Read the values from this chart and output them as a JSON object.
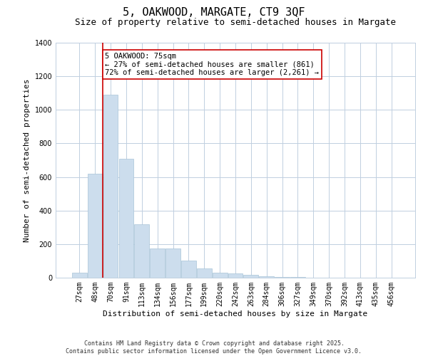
{
  "title": "5, OAKWOOD, MARGATE, CT9 3QF",
  "subtitle": "Size of property relative to semi-detached houses in Margate",
  "xlabel": "Distribution of semi-detached houses by size in Margate",
  "ylabel": "Number of semi-detached properties",
  "categories": [
    "27sqm",
    "48sqm",
    "70sqm",
    "91sqm",
    "113sqm",
    "134sqm",
    "156sqm",
    "177sqm",
    "199sqm",
    "220sqm",
    "242sqm",
    "263sqm",
    "284sqm",
    "306sqm",
    "327sqm",
    "349sqm",
    "370sqm",
    "392sqm",
    "413sqm",
    "435sqm",
    "456sqm"
  ],
  "values": [
    30,
    620,
    1090,
    710,
    320,
    175,
    175,
    100,
    55,
    30,
    25,
    15,
    8,
    5,
    3,
    2,
    2,
    1,
    1,
    0,
    0
  ],
  "bar_color": "#ccdded",
  "bar_edge_color": "#a8c4d8",
  "ylim": [
    0,
    1400
  ],
  "yticks": [
    0,
    200,
    400,
    600,
    800,
    1000,
    1200,
    1400
  ],
  "property_bin_index": 2,
  "annotation_title": "5 OAKWOOD: 75sqm",
  "annotation_line1": "← 27% of semi-detached houses are smaller (861)",
  "annotation_line2": "72% of semi-detached houses are larger (2,261) →",
  "annotation_box_color": "#ffffff",
  "annotation_box_edge": "#cc0000",
  "red_line_color": "#cc0000",
  "footer_line1": "Contains HM Land Registry data © Crown copyright and database right 2025.",
  "footer_line2": "Contains public sector information licensed under the Open Government Licence v3.0.",
  "bg_color": "#ffffff",
  "grid_color": "#c0cfe0",
  "title_fontsize": 11,
  "subtitle_fontsize": 9,
  "axis_label_fontsize": 8,
  "tick_fontsize": 7,
  "annotation_fontsize": 7.5,
  "footer_fontsize": 6
}
